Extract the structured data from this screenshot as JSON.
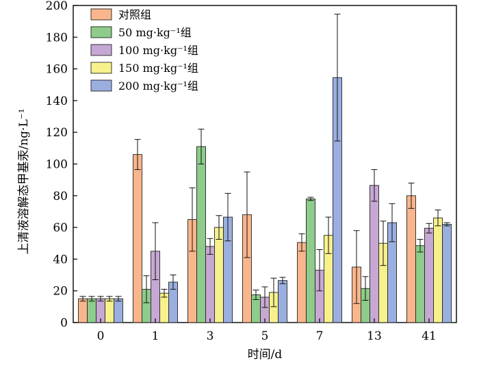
{
  "chart_data": {
    "type": "bar",
    "title": "",
    "xlabel": "时间/d",
    "ylabel": "上清液溶解态甲基汞/ng·L⁻¹",
    "ylim": [
      0,
      200
    ],
    "yticks": [
      0,
      20,
      40,
      60,
      80,
      100,
      120,
      140,
      160,
      180,
      200
    ],
    "categories": [
      "0",
      "1",
      "3",
      "5",
      "7",
      "13",
      "41"
    ],
    "legend_position": "top-left",
    "series": [
      {
        "name": "对照组",
        "color": "#F9B68C",
        "values": [
          15,
          106,
          65,
          68,
          50.5,
          35,
          80
        ],
        "errors": [
          1.5,
          9.5,
          20,
          27,
          5.5,
          23,
          8
        ]
      },
      {
        "name": "50 mg·kg⁻¹组",
        "color": "#8DCC8A",
        "values": [
          15,
          21,
          111,
          17.5,
          78,
          21.5,
          48.5
        ],
        "errors": [
          1.5,
          8.5,
          11,
          3,
          1,
          7.5,
          4
        ]
      },
      {
        "name": "100 mg·kg⁻¹组",
        "color": "#C7A8D4",
        "values": [
          15,
          45,
          48,
          16,
          33,
          86.5,
          59.5
        ],
        "errors": [
          1.5,
          18,
          5,
          6.5,
          13,
          10,
          3
        ]
      },
      {
        "name": "150 mg·kg⁻¹组",
        "color": "#F6F18C",
        "values": [
          15,
          18.5,
          60,
          19,
          55,
          50,
          66
        ],
        "errors": [
          1.5,
          2.5,
          7.5,
          9,
          11.5,
          14,
          5
        ]
      },
      {
        "name": "200 mg·kg⁻¹组",
        "color": "#9AAFDF",
        "values": [
          15,
          25.5,
          66.5,
          26.5,
          154.5,
          63,
          62
        ],
        "errors": [
          1.5,
          4.5,
          15,
          2,
          40,
          12,
          1
        ]
      }
    ]
  }
}
